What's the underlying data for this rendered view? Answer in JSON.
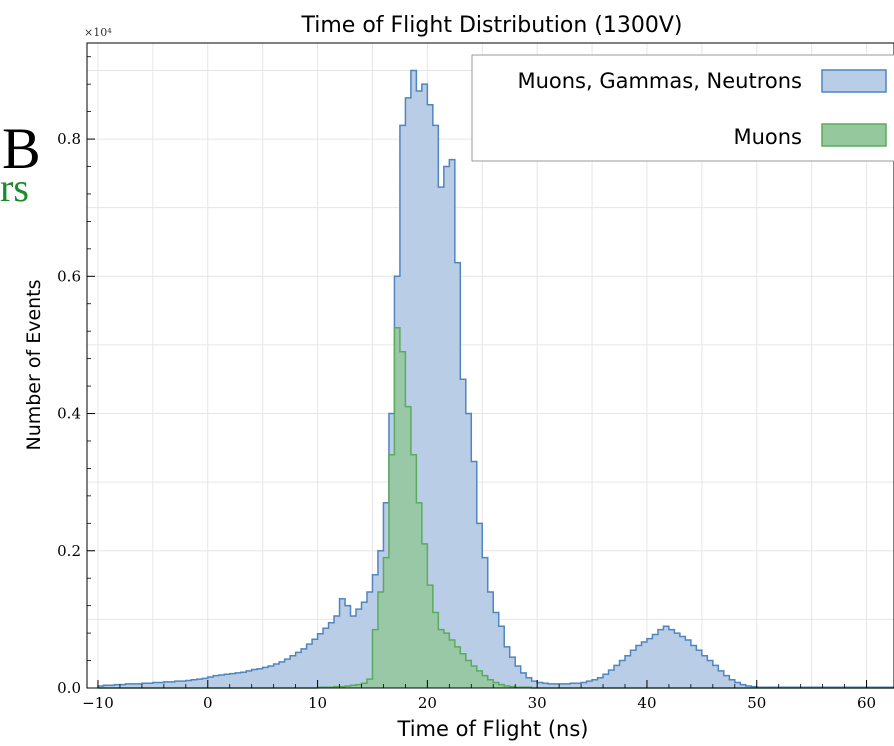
{
  "slide_fragments": {
    "letter": "B",
    "green_text": "rs"
  },
  "colors": {
    "blue_fill": "#b9cde7",
    "blue_line": "#4f86bd",
    "green_fill": "#96c89e",
    "green_line": "#5caa5c",
    "green_text": "#1e8a2e",
    "axis": "#000000",
    "grid": "#e6e6e6"
  },
  "chart_data": {
    "type": "histogram",
    "title": "Time of Flight Distribution (1300V)",
    "xlabel": "Time of Flight (ns)",
    "ylabel": "Number of Events",
    "y_multiplier_label": "×10⁴",
    "xlim": [
      -11,
      62.5
    ],
    "ylim": [
      0,
      0.94
    ],
    "xticks": [
      -10,
      0,
      10,
      20,
      30,
      40,
      50,
      60
    ],
    "xtick_labels": [
      "−10",
      "0",
      "10",
      "20",
      "30",
      "40",
      "50",
      "60"
    ],
    "yticks": [
      0.0,
      0.2,
      0.4,
      0.6,
      0.8
    ],
    "ytick_labels": [
      "0.0",
      "0.2",
      "0.4",
      "0.6",
      "0.8"
    ],
    "grid": true,
    "legend_position": "top-right",
    "bin_width": 0.5,
    "series": [
      {
        "name": "Muons, Gammas, Neutrons",
        "x_start": -10,
        "values": [
          0.003,
          0.004,
          0.004,
          0.005,
          0.005,
          0.006,
          0.006,
          0.006,
          0.007,
          0.007,
          0.008,
          0.008,
          0.009,
          0.009,
          0.01,
          0.01,
          0.011,
          0.012,
          0.013,
          0.014,
          0.016,
          0.018,
          0.019,
          0.02,
          0.021,
          0.022,
          0.023,
          0.025,
          0.027,
          0.028,
          0.03,
          0.032,
          0.035,
          0.038,
          0.042,
          0.047,
          0.052,
          0.057,
          0.064,
          0.071,
          0.079,
          0.087,
          0.095,
          0.105,
          0.13,
          0.12,
          0.105,
          0.115,
          0.125,
          0.14,
          0.165,
          0.2,
          0.27,
          0.4,
          0.6,
          0.82,
          0.86,
          0.9,
          0.87,
          0.88,
          0.85,
          0.82,
          0.73,
          0.76,
          0.77,
          0.62,
          0.45,
          0.4,
          0.33,
          0.24,
          0.19,
          0.14,
          0.11,
          0.09,
          0.06,
          0.045,
          0.032,
          0.022,
          0.015,
          0.01,
          0.008,
          0.007,
          0.006,
          0.006,
          0.006,
          0.006,
          0.007,
          0.007,
          0.008,
          0.01,
          0.012,
          0.015,
          0.02,
          0.026,
          0.033,
          0.04,
          0.047,
          0.055,
          0.062,
          0.067,
          0.072,
          0.078,
          0.085,
          0.09,
          0.085,
          0.08,
          0.075,
          0.07,
          0.062,
          0.055,
          0.047,
          0.04,
          0.033,
          0.025,
          0.018,
          0.012,
          0.008,
          0.005,
          0.003,
          0.002,
          0.001,
          0.001,
          0.001,
          0.001,
          0.001,
          0.001,
          0.001,
          0.001,
          0.001,
          0.001,
          0.001,
          0.001,
          0.001,
          0.001,
          0.001,
          0.001,
          0.001,
          0.001,
          0.001,
          0.001,
          0.001,
          0.001,
          0.001,
          0.001,
          0.001
        ]
      },
      {
        "name": "Muons",
        "x_start": -10,
        "values": [
          0,
          0,
          0,
          0,
          0,
          0,
          0,
          0,
          0,
          0,
          0,
          0,
          0,
          0,
          0,
          0,
          0,
          0,
          0,
          0,
          0,
          0,
          0,
          0,
          0,
          0,
          0,
          0,
          0,
          0,
          0,
          0,
          0,
          0,
          0,
          0,
          0,
          0,
          0,
          0,
          0.001,
          0.001,
          0.001,
          0.002,
          0.002,
          0.003,
          0.004,
          0.005,
          0.007,
          0.013,
          0.085,
          0.14,
          0.19,
          0.34,
          0.525,
          0.49,
          0.41,
          0.34,
          0.27,
          0.21,
          0.15,
          0.11,
          0.085,
          0.08,
          0.07,
          0.06,
          0.05,
          0.04,
          0.032,
          0.025,
          0.018,
          0.012,
          0.008,
          0.005,
          0.003,
          0.002,
          0.001,
          0.001,
          0.001,
          0,
          0,
          0,
          0,
          0,
          0,
          0,
          0,
          0,
          0,
          0,
          0,
          0,
          0,
          0,
          0,
          0,
          0,
          0,
          0,
          0,
          0,
          0,
          0,
          0,
          0,
          0,
          0,
          0,
          0,
          0,
          0,
          0,
          0,
          0,
          0,
          0,
          0,
          0,
          0,
          0,
          0,
          0,
          0,
          0,
          0,
          0,
          0,
          0,
          0,
          0,
          0,
          0,
          0,
          0,
          0,
          0,
          0,
          0,
          0,
          0,
          0,
          0,
          0,
          0,
          0
        ]
      }
    ]
  }
}
